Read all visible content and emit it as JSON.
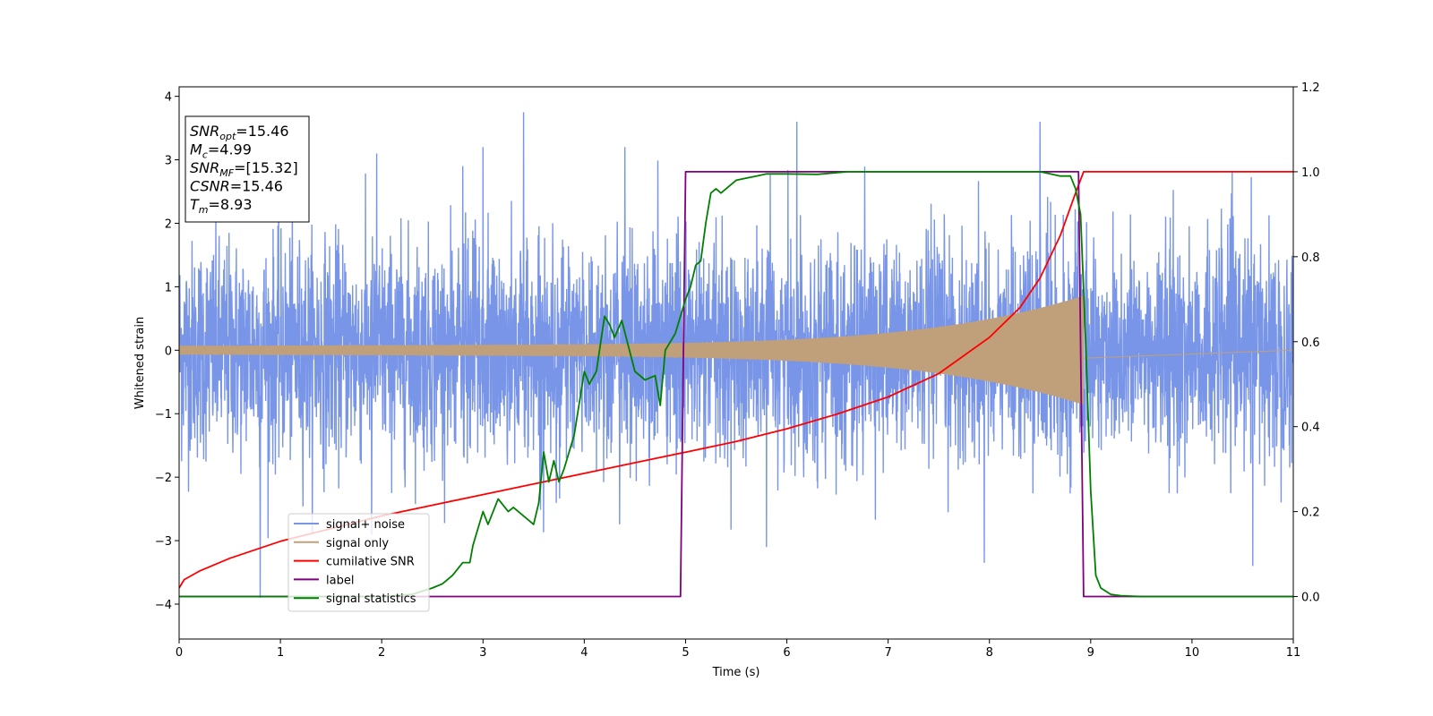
{
  "chart_data": {
    "type": "line",
    "xlabel": "Time (s)",
    "ylabel": "Whitened strain",
    "xlim": [
      0,
      11
    ],
    "ylim": [
      -4.55,
      4.15
    ],
    "y2lim": [
      -0.1,
      1.2
    ],
    "xticks": [
      0,
      1,
      2,
      3,
      4,
      5,
      6,
      7,
      8,
      9,
      10,
      11
    ],
    "yticks": [
      -4,
      -3,
      -2,
      -1,
      0,
      1,
      2,
      3,
      4
    ],
    "yticklabels": [
      "−4",
      "−3",
      "−2",
      "−1",
      "0",
      "1",
      "2",
      "3",
      "4"
    ],
    "y2ticks": [
      0.0,
      0.2,
      0.4,
      0.6,
      0.8,
      1.0,
      1.2
    ],
    "y2ticklabels": [
      "0.0",
      "0.2",
      "0.4",
      "0.6",
      "0.8",
      "1.0",
      "1.2"
    ],
    "grid": false,
    "legend_position": "lower-left",
    "series": [
      {
        "name": "signal+ noise",
        "color": "#7895e8",
        "axis": "left",
        "kind": "noise",
        "noise_sd": 0.85,
        "spikes": [
          [
            0.8,
            -3.9
          ],
          [
            1.95,
            3.1
          ],
          [
            2.8,
            2.9
          ],
          [
            3.0,
            3.2
          ],
          [
            3.4,
            3.75
          ],
          [
            4.4,
            3.2
          ],
          [
            6.1,
            3.6
          ],
          [
            8.5,
            3.6
          ],
          [
            7.95,
            -3.35
          ],
          [
            10.6,
            -3.4
          ],
          [
            1.9,
            -2.9
          ],
          [
            5.8,
            -3.1
          ]
        ]
      },
      {
        "name": "signal only",
        "color": "#c0a07a",
        "axis": "left",
        "kind": "chirp",
        "t_start": 0,
        "t_merge": 8.93,
        "amp_start": 0.07,
        "amp_end": 0.82
      },
      {
        "name": "cumilative SNR",
        "color": "#ff0000",
        "axis": "right",
        "x": [
          0,
          0.05,
          0.2,
          0.5,
          1.0,
          1.5,
          2.0,
          2.5,
          3.0,
          3.5,
          4.0,
          4.5,
          5.0,
          5.5,
          6.0,
          6.5,
          7.0,
          7.5,
          8.0,
          8.3,
          8.5,
          8.7,
          8.85,
          8.93,
          8.931,
          11
        ],
        "y": [
          0.02,
          0.04,
          0.06,
          0.09,
          0.13,
          0.16,
          0.19,
          0.215,
          0.24,
          0.265,
          0.29,
          0.315,
          0.34,
          0.365,
          0.395,
          0.43,
          0.47,
          0.525,
          0.61,
          0.68,
          0.75,
          0.85,
          0.95,
          1.0,
          1.0,
          1.0
        ]
      },
      {
        "name": "label",
        "color": "#800080",
        "axis": "right",
        "x": [
          0,
          4.95,
          5.0,
          8.88,
          8.93,
          11
        ],
        "y": [
          0,
          0,
          1,
          1,
          0,
          0
        ]
      },
      {
        "name": "signal statistics",
        "color": "#008000",
        "axis": "right",
        "x": [
          0,
          2.0,
          2.3,
          2.5,
          2.6,
          2.7,
          2.8,
          2.87,
          2.9,
          3.0,
          3.05,
          3.15,
          3.25,
          3.3,
          3.4,
          3.5,
          3.55,
          3.6,
          3.65,
          3.7,
          3.75,
          3.8,
          3.9,
          4.0,
          4.05,
          4.12,
          4.2,
          4.25,
          4.3,
          4.37,
          4.5,
          4.6,
          4.7,
          4.75,
          4.8,
          4.85,
          4.9,
          4.95,
          5.0,
          5.05,
          5.1,
          5.15,
          5.2,
          5.25,
          5.3,
          5.35,
          5.45,
          5.5,
          5.6,
          5.7,
          5.8,
          5.9,
          6.0,
          6.3,
          6.6,
          7.0,
          7.5,
          8.0,
          8.3,
          8.5,
          8.6,
          8.7,
          8.8,
          8.85,
          8.9,
          8.95,
          9.0,
          9.05,
          9.1,
          9.2,
          9.3,
          9.5,
          11
        ],
        "y": [
          0,
          0,
          0.005,
          0.02,
          0.03,
          0.05,
          0.08,
          0.08,
          0.12,
          0.2,
          0.17,
          0.23,
          0.2,
          0.21,
          0.19,
          0.17,
          0.22,
          0.34,
          0.27,
          0.32,
          0.27,
          0.3,
          0.38,
          0.53,
          0.5,
          0.53,
          0.66,
          0.64,
          0.61,
          0.65,
          0.53,
          0.51,
          0.52,
          0.45,
          0.58,
          0.6,
          0.62,
          0.66,
          0.7,
          0.73,
          0.78,
          0.79,
          0.88,
          0.95,
          0.96,
          0.95,
          0.97,
          0.98,
          0.985,
          0.99,
          0.995,
          0.995,
          0.995,
          0.994,
          1.0,
          1.0,
          1.0,
          1.0,
          1.0,
          1.0,
          0.995,
          0.99,
          0.99,
          0.96,
          0.9,
          0.6,
          0.25,
          0.05,
          0.02,
          0.005,
          0.002,
          0,
          0
        ]
      }
    ],
    "annotation": {
      "lines": [
        {
          "name": "SNR",
          "sub": "opt",
          "value": "=15.46"
        },
        {
          "name": "M",
          "sub": "c",
          "value": "=4.99"
        },
        {
          "name": "SNR",
          "sub": "MF",
          "value": "=[15.32]"
        },
        {
          "name": "CSNR",
          "sub": "",
          "value": "=15.46"
        },
        {
          "name": "T",
          "sub": "m",
          "value": "=8.93"
        }
      ]
    }
  }
}
